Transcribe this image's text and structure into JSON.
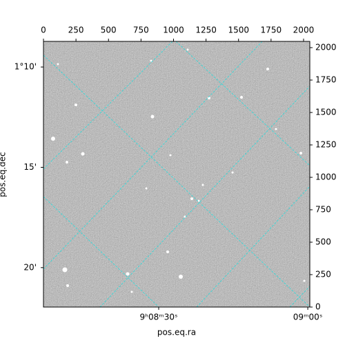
{
  "chart_data": {
    "type": "image",
    "xlabel": "pos.eq.ra",
    "ylabel": "pos.eq.dec",
    "xlim": [
      0,
      2048
    ],
    "ylim": [
      0,
      2048
    ],
    "xticks": [
      0,
      250,
      500,
      750,
      1000,
      1250,
      1500,
      1750,
      2000
    ],
    "yticks": [
      0,
      250,
      500,
      750,
      1000,
      1250,
      1500,
      1750,
      2000
    ],
    "ra_lim": [
      137.0284,
      137.2517
    ],
    "ra_ticks": [
      {
        "value": 137.125,
        "label": "9ʰ08ᵐ30ˢ"
      },
      {
        "value": 137.25,
        "label": "09ᵐ00ˢ"
      }
    ],
    "dec_lim": [
      1.1454,
      1.3661
    ],
    "dec_ticks": [
      {
        "value": 1.16667,
        "label": "1°10'"
      },
      {
        "value": 1.25,
        "label": "15'"
      },
      {
        "value": 1.33333,
        "label": "20'"
      }
    ]
  }
}
